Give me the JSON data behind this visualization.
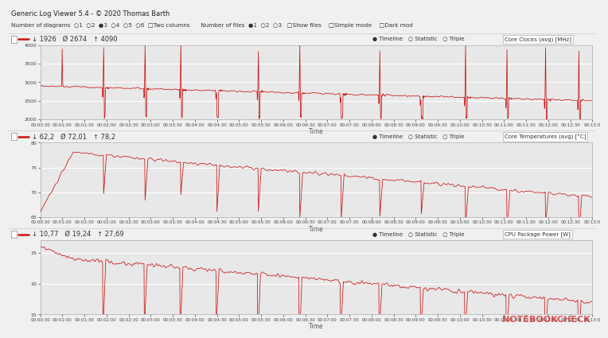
{
  "title_bar": "Generic Log Viewer 5.4 - © 2020 Thomas Barth",
  "toolbar_text": "Number of diagrams  ○1  ○2  ●3  ○4  ○5  ○6  □Two columns      Number of files  ●1  ○2  ○3   □Show files    □Simple mode    □Dark mod",
  "bg_color": "#f0f0f0",
  "plot_bg_color": "#e8e8e8",
  "line_color": "#cc1111",
  "grid_color": "#ffffff",
  "header_border": "#cccccc",
  "panel1_label": "Core Clocks (avg) [MHz]",
  "panel1_stats_min": "1926",
  "panel1_stats_avg": "2674",
  "panel1_stats_max": "4090",
  "panel1_ylim": [
    2000,
    4000
  ],
  "panel1_yticks": [
    2000,
    2500,
    3000,
    3500,
    4000
  ],
  "panel2_label": "Core Temperatures (avg) [°C]",
  "panel2_stats_min": "62,2",
  "panel2_stats_avg": "72,01",
  "panel2_stats_max": "78,2",
  "panel2_ylim": [
    65,
    80
  ],
  "panel2_yticks": [
    65,
    70,
    75,
    80
  ],
  "panel3_label": "CPU Package Power [W]",
  "panel3_stats_min": "10,77",
  "panel3_stats_avg": "19,24",
  "panel3_stats_max": "27,69",
  "panel3_ylim": [
    15,
    27
  ],
  "panel3_yticks": [
    15,
    20,
    25
  ],
  "xlabel": "Time",
  "time_labels": [
    "00:00:30",
    "00:01:00",
    "00:01:30",
    "00:02:00",
    "00:02:30",
    "00:03:00",
    "00:03:30",
    "00:04:00",
    "00:04:30",
    "00:05:00",
    "00:05:30",
    "00:06:00",
    "00:06:30",
    "00:07:00",
    "00:07:30",
    "00:08:00",
    "00:08:30",
    "00:09:00",
    "00:09:30",
    "00:10:00",
    "00:10:30",
    "00:11:00",
    "00:11:30",
    "00:12:00",
    "00:12:30",
    "00:13:0"
  ],
  "n_points": 1560,
  "title_fontsize": 6.0,
  "toolbar_fontsize": 5.2,
  "stats_fontsize": 6.0,
  "label_fontsize": 5.5,
  "tick_fontsize": 4.5,
  "xlabel_fontsize": 5.5
}
